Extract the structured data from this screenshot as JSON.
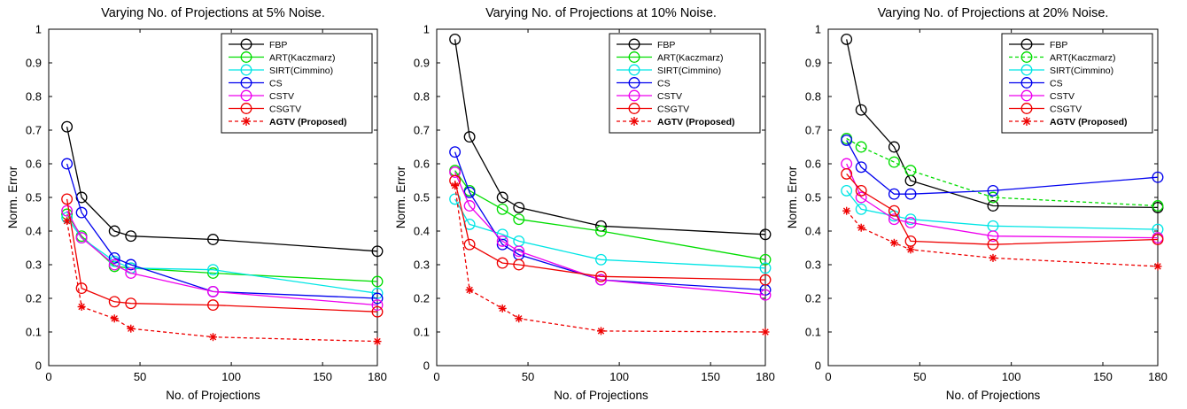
{
  "chart_data": [
    {
      "type": "line",
      "title": "Varying No. of Projections at 5% Noise.",
      "xlabel": "No. of Projections",
      "ylabel": "Norm. Error",
      "xlim": [
        0,
        180
      ],
      "ylim": [
        0,
        1
      ],
      "xticks": [
        0,
        50,
        100,
        150,
        180
      ],
      "yticks": [
        0,
        0.1,
        0.2,
        0.3,
        0.4,
        0.5,
        0.6,
        0.7,
        0.8,
        0.9,
        1
      ],
      "legend_position": "top-right",
      "x": [
        10,
        18,
        36,
        45,
        90,
        180
      ],
      "series": [
        {
          "name": "FBP",
          "color": "#000000",
          "marker": "circle",
          "dashed": false,
          "values": [
            0.71,
            0.5,
            0.4,
            0.385,
            0.375,
            0.34
          ]
        },
        {
          "name": "ART(Kaczmarz)",
          "color": "#00dd00",
          "marker": "circle",
          "dashed": false,
          "values": [
            0.45,
            0.385,
            0.295,
            0.29,
            0.275,
            0.25
          ]
        },
        {
          "name": "SIRT(Cimmino)",
          "color": "#00e5e5",
          "marker": "circle",
          "dashed": false,
          "values": [
            0.44,
            0.38,
            0.31,
            0.29,
            0.285,
            0.215
          ]
        },
        {
          "name": "CS",
          "color": "#0000ee",
          "marker": "circle",
          "dashed": false,
          "values": [
            0.6,
            0.455,
            0.32,
            0.3,
            0.22,
            0.2
          ]
        },
        {
          "name": "CSTV",
          "color": "#ee00ee",
          "marker": "circle",
          "dashed": false,
          "values": [
            0.46,
            0.38,
            0.3,
            0.275,
            0.22,
            0.18
          ]
        },
        {
          "name": "CSGTV",
          "color": "#ee0000",
          "marker": "circle",
          "dashed": false,
          "values": [
            0.495,
            0.23,
            0.19,
            0.185,
            0.18,
            0.16
          ]
        },
        {
          "name": "AGTV (Proposed)",
          "color": "#ee0000",
          "marker": "star",
          "dashed": true,
          "bold": true,
          "values": [
            0.43,
            0.175,
            0.14,
            0.11,
            0.085,
            0.072
          ]
        }
      ]
    },
    {
      "type": "line",
      "title": "Varying No. of Projections at 10% Noise.",
      "xlabel": "No. of Projections",
      "ylabel": "Norm. Error",
      "xlim": [
        0,
        180
      ],
      "ylim": [
        0,
        1
      ],
      "xticks": [
        0,
        50,
        100,
        150,
        180
      ],
      "yticks": [
        0,
        0.1,
        0.2,
        0.3,
        0.4,
        0.5,
        0.6,
        0.7,
        0.8,
        0.9,
        1
      ],
      "legend_position": "top-right",
      "x": [
        10,
        18,
        36,
        45,
        90,
        180
      ],
      "series": [
        {
          "name": "FBP",
          "color": "#000000",
          "marker": "circle",
          "dashed": false,
          "values": [
            0.97,
            0.68,
            0.5,
            0.47,
            0.415,
            0.39
          ]
        },
        {
          "name": "ART(Kaczmarz)",
          "color": "#00dd00",
          "marker": "circle",
          "dashed": false,
          "values": [
            0.58,
            0.52,
            0.465,
            0.435,
            0.4,
            0.315
          ]
        },
        {
          "name": "SIRT(Cimmino)",
          "color": "#00e5e5",
          "marker": "circle",
          "dashed": false,
          "values": [
            0.495,
            0.42,
            0.39,
            0.37,
            0.315,
            0.29
          ]
        },
        {
          "name": "CS",
          "color": "#0000ee",
          "marker": "circle",
          "dashed": false,
          "values": [
            0.635,
            0.515,
            0.36,
            0.33,
            0.255,
            0.225
          ]
        },
        {
          "name": "CSTV",
          "color": "#ee00ee",
          "marker": "circle",
          "dashed": false,
          "values": [
            0.575,
            0.475,
            0.37,
            0.34,
            0.255,
            0.21
          ]
        },
        {
          "name": "CSGTV",
          "color": "#ee0000",
          "marker": "circle",
          "dashed": false,
          "values": [
            0.55,
            0.36,
            0.305,
            0.3,
            0.265,
            0.255
          ]
        },
        {
          "name": "AGTV (Proposed)",
          "color": "#ee0000",
          "marker": "star",
          "dashed": true,
          "bold": true,
          "values": [
            0.535,
            0.225,
            0.17,
            0.14,
            0.103,
            0.1
          ]
        }
      ]
    },
    {
      "type": "line",
      "title": "Varying No. of Projections at 20% Noise.",
      "xlabel": "No. of Projections",
      "ylabel": "Norm. Error",
      "xlim": [
        0,
        180
      ],
      "ylim": [
        0,
        1
      ],
      "xticks": [
        0,
        50,
        100,
        150,
        180
      ],
      "yticks": [
        0,
        0.1,
        0.2,
        0.3,
        0.4,
        0.5,
        0.6,
        0.7,
        0.8,
        0.9,
        1
      ],
      "legend_position": "top-right",
      "x": [
        10,
        18,
        36,
        45,
        90,
        180
      ],
      "series": [
        {
          "name": "FBP",
          "color": "#000000",
          "marker": "circle",
          "dashed": false,
          "values": [
            0.97,
            0.76,
            0.65,
            0.55,
            0.475,
            0.47
          ]
        },
        {
          "name": "ART(Kaczmarz)",
          "color": "#00dd00",
          "marker": "circle",
          "dashed": true,
          "values": [
            0.675,
            0.65,
            0.605,
            0.58,
            0.5,
            0.475
          ]
        },
        {
          "name": "SIRT(Cimmino)",
          "color": "#00e5e5",
          "marker": "circle",
          "dashed": false,
          "values": [
            0.52,
            0.465,
            0.445,
            0.435,
            0.415,
            0.405
          ]
        },
        {
          "name": "CS",
          "color": "#0000ee",
          "marker": "circle",
          "dashed": false,
          "values": [
            0.67,
            0.59,
            0.51,
            0.51,
            0.52,
            0.56
          ]
        },
        {
          "name": "CSTV",
          "color": "#ee00ee",
          "marker": "circle",
          "dashed": false,
          "values": [
            0.6,
            0.5,
            0.435,
            0.425,
            0.385,
            0.38
          ]
        },
        {
          "name": "CSGTV",
          "color": "#ee0000",
          "marker": "circle",
          "dashed": false,
          "values": [
            0.57,
            0.52,
            0.46,
            0.37,
            0.36,
            0.375
          ]
        },
        {
          "name": "AGTV (Proposed)",
          "color": "#ee0000",
          "marker": "star",
          "dashed": true,
          "bold": true,
          "values": [
            0.46,
            0.41,
            0.365,
            0.345,
            0.32,
            0.295
          ]
        }
      ]
    }
  ]
}
